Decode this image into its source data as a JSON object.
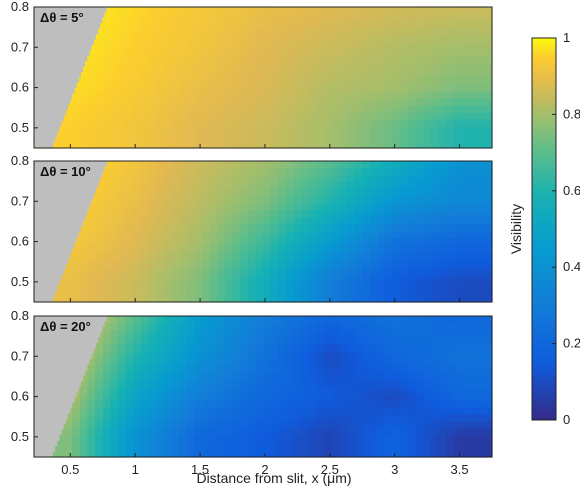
{
  "chart_data": {
    "type": "heatmap",
    "xlabel": "Distance from slit, x (μm)",
    "xlim": [
      0.22,
      3.75
    ],
    "x_ticks": [
      "0.5",
      "1",
      "1.5",
      "2",
      "2.5",
      "3",
      "3.5"
    ],
    "x_tick_values": [
      0.5,
      1,
      1.5,
      2,
      2.5,
      3,
      3.5
    ],
    "ylim": [
      0.45,
      0.8
    ],
    "y_ticks": [
      "0.5",
      "0.6",
      "0.7",
      "0.8"
    ],
    "y_tick_values": [
      0.5,
      0.6,
      0.7,
      0.8
    ],
    "colorbar": {
      "label": "Visibility",
      "range": [
        0,
        1
      ],
      "ticks": [
        "0",
        "0.2",
        "0.4",
        "0.6",
        "0.8",
        "1"
      ],
      "tick_values": [
        0,
        0.2,
        0.4,
        0.6,
        0.8,
        1
      ],
      "colormap": "parula"
    },
    "masked_region_color": "#bebebe",
    "panels": [
      {
        "label": "Δθ = 5°",
        "y_values": [
          0.5,
          0.6,
          0.7,
          0.8
        ],
        "x_values": [
          0.5,
          1,
          1.5,
          2,
          2.5,
          3,
          3.5
        ],
        "visibility": [
          [
            0.95,
            0.92,
            0.88,
            0.85,
            0.8,
            0.72,
            0.6
          ],
          [
            0.97,
            0.94,
            0.9,
            0.87,
            0.82,
            0.8,
            0.75
          ],
          [
            0.98,
            0.95,
            0.92,
            0.88,
            0.85,
            0.82,
            0.8
          ],
          [
            0.99,
            0.96,
            0.93,
            0.9,
            0.88,
            0.86,
            0.85
          ]
        ]
      },
      {
        "label": "Δθ = 10°",
        "y_values": [
          0.5,
          0.6,
          0.7,
          0.8
        ],
        "x_values": [
          0.5,
          1,
          1.5,
          2,
          2.5,
          3,
          3.5
        ],
        "visibility": [
          [
            0.9,
            0.85,
            0.75,
            0.55,
            0.3,
            0.15,
            0.1
          ],
          [
            0.93,
            0.88,
            0.8,
            0.65,
            0.45,
            0.25,
            0.2
          ],
          [
            0.95,
            0.9,
            0.83,
            0.75,
            0.6,
            0.42,
            0.35
          ],
          [
            0.97,
            0.92,
            0.85,
            0.8,
            0.7,
            0.55,
            0.4
          ]
        ]
      },
      {
        "label": "Δθ = 20°",
        "y_values": [
          0.5,
          0.6,
          0.7,
          0.8
        ],
        "x_values": [
          0.5,
          1,
          1.5,
          2,
          2.5,
          3,
          3.5
        ],
        "visibility": [
          [
            0.75,
            0.4,
            0.2,
            0.15,
            0.08,
            0.18,
            0.05
          ],
          [
            0.82,
            0.5,
            0.3,
            0.2,
            0.15,
            0.1,
            0.2
          ],
          [
            0.88,
            0.6,
            0.4,
            0.25,
            0.1,
            0.2,
            0.25
          ],
          [
            0.92,
            0.7,
            0.45,
            0.3,
            0.2,
            0.25,
            0.2
          ]
        ]
      }
    ]
  }
}
